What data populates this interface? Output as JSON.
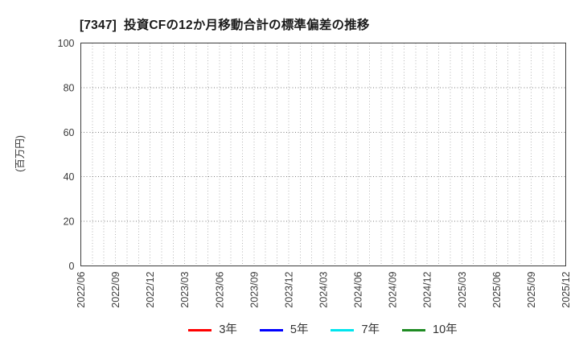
{
  "chart_data": {
    "type": "line",
    "title": "[7347]  投資CFの12か月移動合計の標準偏差の推移",
    "xlabel": "",
    "ylabel": "(百万円)",
    "ylim": [
      0,
      100
    ],
    "yticks": [
      0,
      20,
      40,
      60,
      80,
      100
    ],
    "x_tick_labels": [
      "2022/06",
      "2022/09",
      "2022/12",
      "2023/03",
      "2023/06",
      "2023/09",
      "2023/12",
      "2024/03",
      "2024/06",
      "2024/09",
      "2024/12",
      "2025/03",
      "2025/06",
      "2025/09",
      "2025/12"
    ],
    "x_months_total": 43,
    "x_months_per_labeled_tick": 3,
    "grid": true,
    "grid_style": "dotted",
    "legend_position": "bottom-center",
    "plot_background": "#ffffff",
    "series": [
      {
        "name": "3年",
        "color": "#ff0000",
        "values": []
      },
      {
        "name": "5年",
        "color": "#0000ff",
        "values": []
      },
      {
        "name": "7年",
        "color": "#00e5ee",
        "values": []
      },
      {
        "name": "10年",
        "color": "#1e8b22",
        "values": []
      }
    ]
  }
}
